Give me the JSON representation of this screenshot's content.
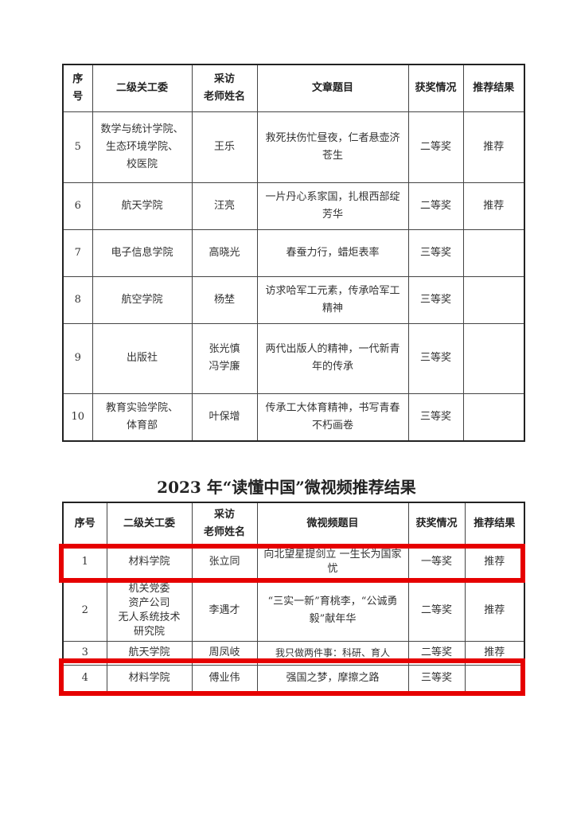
{
  "table1": {
    "headers": [
      "序\n号",
      "二级关工委",
      "采访\n老师姓名",
      "文章题目",
      "获奖情况",
      "推荐结果"
    ],
    "rows": [
      {
        "no": "5",
        "unit": "数学与统计学院、\n生态环境学院、\n校医院",
        "teacher": "王乐",
        "title": "救死扶伤忙昼夜，仁者悬壶济苍生",
        "award": "二等奖",
        "result": "推荐"
      },
      {
        "no": "6",
        "unit": "航天学院",
        "teacher": "汪亮",
        "title": "一片丹心系家国，扎根西部绽芳华",
        "award": "二等奖",
        "result": "推荐"
      },
      {
        "no": "7",
        "unit": "电子信息学院",
        "teacher": "高晓光",
        "title": "春蚕力行，蜡炬表率",
        "award": "三等奖",
        "result": ""
      },
      {
        "no": "8",
        "unit": "航空学院",
        "teacher": "杨埜",
        "title": "访求哈军工元素，传承哈军工精神",
        "award": "三等奖",
        "result": ""
      },
      {
        "no": "9",
        "unit": "出版社",
        "teacher": "张光慎\n冯学廉",
        "title": "两代出版人的精神，一代新青年的传承",
        "award": "三等奖",
        "result": ""
      },
      {
        "no": "10",
        "unit": "教育实验学院、\n体育部",
        "teacher": "叶保增",
        "title": "传承工大体育精神，书写青春不朽画卷",
        "award": "三等奖",
        "result": ""
      }
    ]
  },
  "section_title": "2023 年“读懂中国”微视频推荐结果",
  "table2": {
    "headers": [
      "序号",
      "二级关工委",
      "采访\n老师姓名",
      "微视频题目",
      "获奖情况",
      "推荐结果"
    ],
    "rows": [
      {
        "no": "1",
        "unit": "材料学院",
        "teacher": "张立同",
        "title": "向北望星提剑立 一生长为国家忧",
        "award": "一等奖",
        "result": "推荐",
        "highlighted": true
      },
      {
        "no": "2",
        "unit": "机关党委\n资产公司\n无人系统技术\n研究院",
        "teacher": "李遇才",
        "title": "“三实一新”育桃李，“公诚勇毅”献年华",
        "award": "二等奖",
        "result": "推荐",
        "highlighted": false
      },
      {
        "no": "3",
        "unit": "航天学院",
        "teacher": "周凤岐",
        "title": "我只做两件事：科研、育人",
        "award": "二等奖",
        "result": "推荐",
        "highlighted": false
      },
      {
        "no": "4",
        "unit": "材料学院",
        "teacher": "傅业伟",
        "title": "强国之梦，摩擦之路",
        "award": "三等奖",
        "result": "",
        "highlighted": true
      }
    ]
  },
  "highlight_color": "#e60000"
}
